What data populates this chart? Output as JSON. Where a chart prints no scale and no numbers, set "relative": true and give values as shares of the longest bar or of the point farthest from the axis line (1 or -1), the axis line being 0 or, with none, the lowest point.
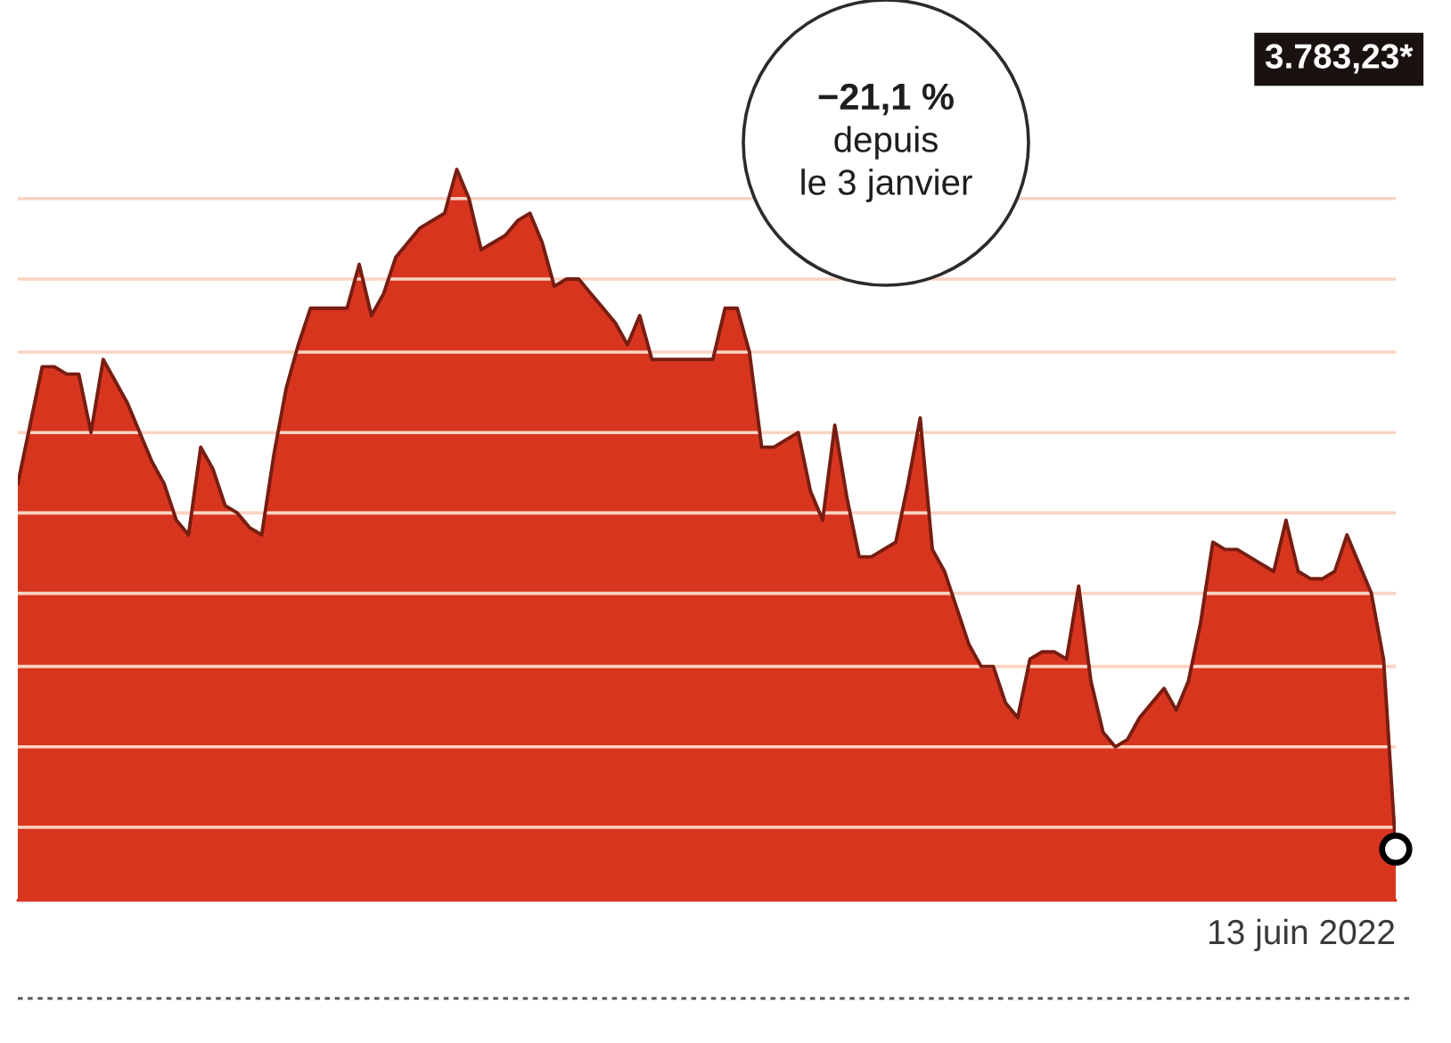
{
  "chart_data": {
    "type": "area",
    "relative": true,
    "categories": [
      null,
      null,
      null,
      null,
      null,
      null,
      null,
      null,
      null,
      null,
      null,
      null,
      null,
      null,
      null,
      null,
      null,
      null,
      null,
      null,
      null,
      null,
      null,
      null,
      null,
      null,
      null,
      null,
      null,
      null,
      null,
      null,
      null,
      null,
      null,
      null,
      null,
      null,
      null,
      null,
      null,
      null,
      null,
      null,
      null,
      null,
      null,
      null,
      null,
      null,
      null,
      null,
      null,
      null,
      null,
      null,
      null,
      null,
      null,
      null,
      null,
      null,
      null,
      null,
      null,
      null,
      null,
      null,
      null,
      null,
      null,
      null,
      null,
      null,
      null,
      null,
      null,
      null,
      null,
      null,
      null,
      null,
      null,
      null,
      null,
      null,
      null,
      null,
      null,
      null,
      null,
      null,
      null,
      null,
      null,
      null,
      null,
      null,
      null,
      null,
      null,
      null,
      null,
      null,
      null,
      null,
      null,
      null,
      null,
      null,
      null,
      null,
      null,
      null
    ],
    "values": [
      0.57,
      0.65,
      0.73,
      0.73,
      0.72,
      0.72,
      0.64,
      0.74,
      0.71,
      0.68,
      0.64,
      0.6,
      0.57,
      0.52,
      0.5,
      0.62,
      0.59,
      0.54,
      0.53,
      0.51,
      0.5,
      0.61,
      0.7,
      0.76,
      0.81,
      0.81,
      0.81,
      0.81,
      0.87,
      0.8,
      0.83,
      0.88,
      0.9,
      0.92,
      0.93,
      0.94,
      1.0,
      0.96,
      0.89,
      0.9,
      0.91,
      0.93,
      0.94,
      0.9,
      0.84,
      0.85,
      0.85,
      0.83,
      0.81,
      0.79,
      0.76,
      0.8,
      0.74,
      0.74,
      0.74,
      0.74,
      0.74,
      0.74,
      0.81,
      0.81,
      0.75,
      0.62,
      0.62,
      0.63,
      0.64,
      0.56,
      0.52,
      0.65,
      0.55,
      0.47,
      0.47,
      0.48,
      0.49,
      0.57,
      0.66,
      0.48,
      0.45,
      0.4,
      0.35,
      0.32,
      0.32,
      0.27,
      0.25,
      0.33,
      0.34,
      0.34,
      0.33,
      0.43,
      0.3,
      0.23,
      0.21,
      0.22,
      0.25,
      0.27,
      0.29,
      0.26,
      0.3,
      0.38,
      0.49,
      0.48,
      0.48,
      0.47,
      0.46,
      0.45,
      0.52,
      0.45,
      0.44,
      0.44,
      0.45,
      0.5,
      0.46,
      0.42,
      0.33,
      0.07
    ],
    "color": "#d8351f",
    "ref_lines": [
      {
        "axis": "y",
        "value": 0.1,
        "color": "#fbd3c2"
      },
      {
        "axis": "y",
        "value": 0.21,
        "color": "#fbd3c2"
      },
      {
        "axis": "y",
        "value": 0.32,
        "color": "#fbd3c2"
      },
      {
        "axis": "y",
        "value": 0.42,
        "color": "#fbd3c2"
      },
      {
        "axis": "y",
        "value": 0.53,
        "color": "#fbd3c2"
      },
      {
        "axis": "y",
        "value": 0.64,
        "color": "#fbd3c2"
      },
      {
        "axis": "y",
        "value": 0.75,
        "color": "#fbd3c2"
      },
      {
        "axis": "y",
        "value": 0.85,
        "color": "#fbd3c2"
      },
      {
        "axis": "y",
        "value": 0.96,
        "color": "#fbd3c2"
      }
    ],
    "xlabel": "13 juin 2022",
    "annotations": [
      "−21,1 %\ndepuis\nle 3 janvier",
      "3.783,23*"
    ]
  }
}
